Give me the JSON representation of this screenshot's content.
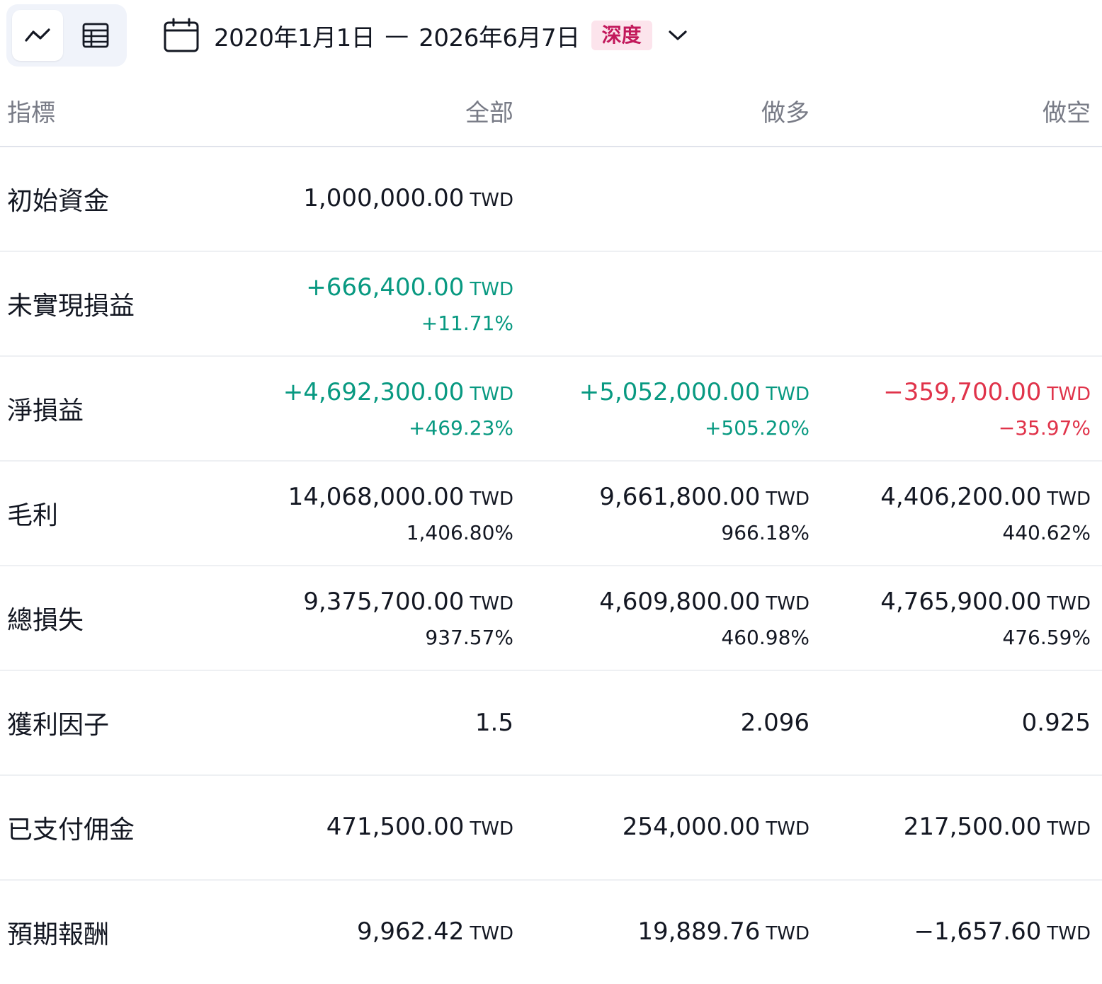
{
  "toolbar": {
    "view_toggle": {
      "chart_icon": "line-chart-icon",
      "table_icon": "table-icon",
      "active": "chart"
    },
    "date_range": {
      "icon": "calendar-icon",
      "start": "2020年1月1日",
      "separator": "—",
      "end": "2026年6月7日",
      "badge": "深度",
      "dropdown_icon": "chevron-down-icon"
    }
  },
  "table": {
    "headers": [
      "指標",
      "全部",
      "做多",
      "做空"
    ],
    "rows": [
      {
        "name": "初始資金",
        "cells": [
          {
            "value": "1,000,000.00",
            "currency": "TWD",
            "percent": "",
            "tone": "neu"
          },
          {
            "value": "",
            "currency": "",
            "percent": "",
            "tone": "neu"
          },
          {
            "value": "",
            "currency": "",
            "percent": "",
            "tone": "neu"
          }
        ]
      },
      {
        "name": "未實現損益",
        "cells": [
          {
            "value": "+666,400.00",
            "currency": "TWD",
            "percent": "+11.71%",
            "tone": "pos"
          },
          {
            "value": "",
            "currency": "",
            "percent": "",
            "tone": "neu"
          },
          {
            "value": "",
            "currency": "",
            "percent": "",
            "tone": "neu"
          }
        ]
      },
      {
        "name": "淨損益",
        "cells": [
          {
            "value": "+4,692,300.00",
            "currency": "TWD",
            "percent": "+469.23%",
            "tone": "pos"
          },
          {
            "value": "+5,052,000.00",
            "currency": "TWD",
            "percent": "+505.20%",
            "tone": "pos"
          },
          {
            "value": "−359,700.00",
            "currency": "TWD",
            "percent": "−35.97%",
            "tone": "neg"
          }
        ]
      },
      {
        "name": "毛利",
        "cells": [
          {
            "value": "14,068,000.00",
            "currency": "TWD",
            "percent": "1,406.80%",
            "tone": "neu"
          },
          {
            "value": "9,661,800.00",
            "currency": "TWD",
            "percent": "966.18%",
            "tone": "neu"
          },
          {
            "value": "4,406,200.00",
            "currency": "TWD",
            "percent": "440.62%",
            "tone": "neu"
          }
        ]
      },
      {
        "name": "總損失",
        "cells": [
          {
            "value": "9,375,700.00",
            "currency": "TWD",
            "percent": "937.57%",
            "tone": "neu"
          },
          {
            "value": "4,609,800.00",
            "currency": "TWD",
            "percent": "460.98%",
            "tone": "neu"
          },
          {
            "value": "4,765,900.00",
            "currency": "TWD",
            "percent": "476.59%",
            "tone": "neu"
          }
        ]
      },
      {
        "name": "獲利因子",
        "cells": [
          {
            "value": "1.5",
            "currency": "",
            "percent": "",
            "tone": "neu"
          },
          {
            "value": "2.096",
            "currency": "",
            "percent": "",
            "tone": "neu"
          },
          {
            "value": "0.925",
            "currency": "",
            "percent": "",
            "tone": "neu"
          }
        ]
      },
      {
        "name": "已支付佣金",
        "cells": [
          {
            "value": "471,500.00",
            "currency": "TWD",
            "percent": "",
            "tone": "neu"
          },
          {
            "value": "254,000.00",
            "currency": "TWD",
            "percent": "",
            "tone": "neu"
          },
          {
            "value": "217,500.00",
            "currency": "TWD",
            "percent": "",
            "tone": "neu"
          }
        ]
      },
      {
        "name": "預期報酬",
        "cells": [
          {
            "value": "9,962.42",
            "currency": "TWD",
            "percent": "",
            "tone": "neu"
          },
          {
            "value": "19,889.76",
            "currency": "TWD",
            "percent": "",
            "tone": "neu"
          },
          {
            "value": "−1,657.60",
            "currency": "TWD",
            "percent": "",
            "tone": "neu"
          }
        ]
      }
    ]
  },
  "colors": {
    "positive": "#089981",
    "negative": "#e0334a",
    "text": "#131722",
    "muted": "#787b86",
    "badge_bg": "#fce4ec",
    "badge_text": "#c2185b"
  }
}
